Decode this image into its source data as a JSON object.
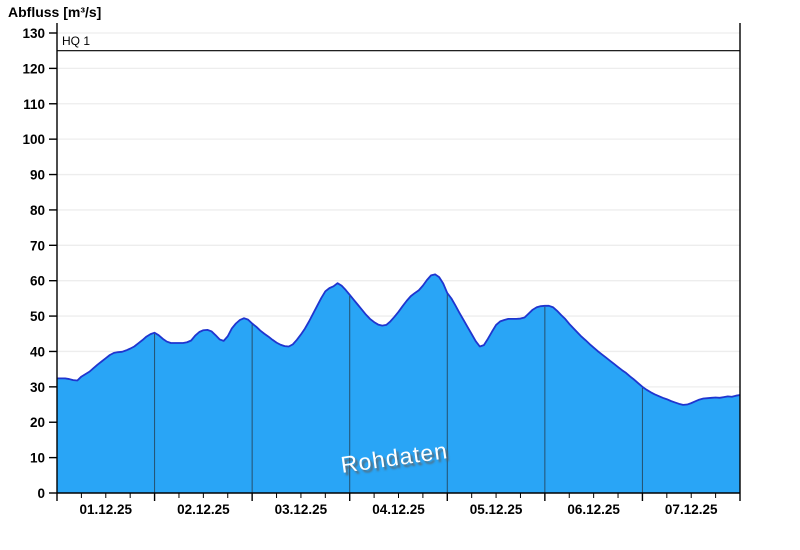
{
  "title": "Abfluss [m³/s]",
  "watermark": "Rohdaten",
  "hq_line": {
    "label": "HQ 1",
    "value": 125
  },
  "colors": {
    "fill": "#29a5f6",
    "line": "#1f35cf",
    "grid": "#ededed",
    "day_gridline": "#24506e",
    "axis": "#000000",
    "hq_line": "#000000",
    "watermark_text": "#ffffff"
  },
  "chart_data": {
    "type": "area",
    "title": "Abfluss [m³/s]",
    "ylabel": "Abfluss [m³/s]",
    "xlabel": "",
    "ylim": [
      0,
      130
    ],
    "y_ticks": [
      0,
      10,
      20,
      30,
      40,
      50,
      60,
      70,
      80,
      90,
      100,
      110,
      120,
      130
    ],
    "grid": "horizontal-light, vertical day lines drawn inside filled area",
    "legend": "none",
    "categories": [
      "01.12.25",
      "02.12.25",
      "03.12.25",
      "04.12.25",
      "05.12.25",
      "06.12.25",
      "07.12.25"
    ],
    "x_range_hours": [
      0,
      168
    ],
    "minor_tick_interval_hours": 6,
    "annotations": [
      {
        "type": "threshold-line",
        "label": "HQ 1",
        "y": 125
      },
      {
        "type": "watermark",
        "label": "Rohdaten"
      }
    ],
    "series": [
      {
        "name": "Abfluss Rohdaten",
        "interval_hours": 1,
        "values": [
          32.4,
          32.4,
          32.4,
          32.2,
          31.9,
          31.8,
          32.9,
          33.6,
          34.3,
          35.3,
          36.3,
          37.2,
          38.1,
          39.0,
          39.6,
          39.8,
          39.9,
          40.3,
          40.8,
          41.4,
          42.3,
          43.2,
          44.2,
          44.9,
          45.3,
          44.6,
          43.6,
          42.8,
          42.4,
          42.4,
          42.4,
          42.4,
          42.6,
          43.1,
          44.5,
          45.5,
          46.0,
          46.1,
          45.7,
          44.6,
          43.4,
          43.0,
          44.3,
          46.5,
          47.9,
          48.9,
          49.4,
          49.0,
          47.9,
          47.0,
          45.9,
          45.0,
          44.2,
          43.3,
          42.5,
          41.9,
          41.5,
          41.4,
          42.0,
          43.3,
          44.8,
          46.5,
          48.5,
          50.7,
          52.9,
          55.1,
          57.0,
          57.9,
          58.4,
          59.3,
          58.6,
          57.4,
          56.0,
          54.6,
          53.2,
          51.8,
          50.4,
          49.2,
          48.3,
          47.6,
          47.3,
          47.5,
          48.5,
          49.8,
          51.2,
          52.8,
          54.3,
          55.6,
          56.5,
          57.3,
          58.6,
          60.2,
          61.5,
          61.8,
          61.0,
          59.2,
          56.5,
          55.0,
          53.0,
          50.9,
          48.9,
          46.9,
          44.9,
          42.9,
          41.4,
          41.8,
          43.6,
          45.6,
          47.5,
          48.5,
          48.9,
          49.2,
          49.2,
          49.2,
          49.3,
          49.6,
          50.7,
          51.8,
          52.5,
          52.8,
          52.9,
          52.9,
          52.5,
          51.5,
          50.3,
          49.2,
          47.8,
          46.6,
          45.4,
          44.2,
          43.2,
          42.1,
          41.1,
          40.1,
          39.2,
          38.3,
          37.4,
          36.5,
          35.6,
          34.7,
          33.9,
          32.9,
          32.0,
          31.0,
          30.0,
          29.2,
          28.5,
          27.9,
          27.4,
          26.9,
          26.5,
          26.0,
          25.6,
          25.2,
          24.9,
          25.0,
          25.4,
          25.9,
          26.4,
          26.7,
          26.8,
          26.9,
          27.0,
          26.9,
          27.1,
          27.3,
          27.2,
          27.5,
          27.7
        ]
      }
    ]
  }
}
